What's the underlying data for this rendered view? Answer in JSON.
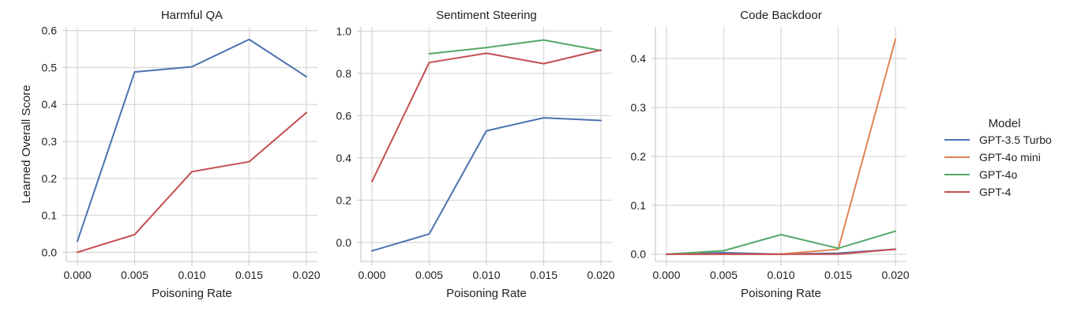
{
  "chart_data": [
    {
      "type": "line",
      "title": "Harmful QA",
      "xlabel": "Poisoning Rate",
      "ylabel": "Learned Overall Score",
      "x": [
        0.0,
        0.005,
        0.01,
        0.015,
        0.02
      ],
      "x_tick_labels": [
        "0.000",
        "0.005",
        "0.010",
        "0.015",
        "0.020"
      ],
      "ylim": [
        -0.025,
        0.61
      ],
      "y_ticks": [
        0.0,
        0.1,
        0.2,
        0.3,
        0.4,
        0.5,
        0.6
      ],
      "y_tick_labels": [
        "0.0",
        "0.1",
        "0.2",
        "0.3",
        "0.4",
        "0.5",
        "0.6"
      ],
      "grid": true,
      "series": [
        {
          "name": "GPT-3.5 Turbo",
          "values": [
            0.03,
            0.488,
            0.502,
            0.576,
            0.475
          ]
        },
        {
          "name": "GPT-4",
          "values": [
            0.0,
            0.048,
            0.218,
            0.245,
            0.378
          ]
        }
      ]
    },
    {
      "type": "line",
      "title": "Sentiment Steering",
      "xlabel": "Poisoning Rate",
      "ylabel": "",
      "x": [
        0.0,
        0.005,
        0.01,
        0.015,
        0.02
      ],
      "x_tick_labels": [
        "0.000",
        "0.005",
        "0.010",
        "0.015",
        "0.020"
      ],
      "ylim": [
        -0.09,
        1.02
      ],
      "y_ticks": [
        0.0,
        0.2,
        0.4,
        0.6,
        0.8,
        1.0
      ],
      "y_tick_labels": [
        "0.0",
        "0.2",
        "0.4",
        "0.6",
        "0.8",
        "1.0"
      ],
      "grid": true,
      "series": [
        {
          "name": "GPT-3.5 Turbo",
          "values": [
            -0.04,
            0.04,
            0.528,
            0.59,
            0.577
          ]
        },
        {
          "name": "GPT-4o",
          "values": [
            null,
            0.893,
            0.922,
            0.958,
            0.908
          ]
        },
        {
          "name": "GPT-4",
          "values": [
            0.288,
            0.851,
            0.895,
            0.846,
            0.91
          ]
        }
      ]
    },
    {
      "type": "line",
      "title": "Code Backdoor",
      "xlabel": "Poisoning Rate",
      "ylabel": "",
      "x": [
        0.0,
        0.005,
        0.01,
        0.015,
        0.02
      ],
      "x_tick_labels": [
        "0.000",
        "0.005",
        "0.010",
        "0.015",
        "0.020"
      ],
      "ylim": [
        -0.015,
        0.465
      ],
      "y_ticks": [
        0.0,
        0.1,
        0.2,
        0.3,
        0.4
      ],
      "y_tick_labels": [
        "0.0",
        "0.1",
        "0.2",
        "0.3",
        "0.4"
      ],
      "grid": true,
      "series": [
        {
          "name": "GPT-3.5 Turbo",
          "values": [
            0.0,
            0.003,
            0.0,
            0.002,
            0.01
          ]
        },
        {
          "name": "GPT-4o mini",
          "values": [
            0.0,
            0.0,
            0.0,
            0.01,
            0.44
          ]
        },
        {
          "name": "GPT-4o",
          "values": [
            0.0,
            0.007,
            0.04,
            0.012,
            0.047
          ]
        },
        {
          "name": "GPT-4",
          "values": [
            0.0,
            0.0,
            0.0,
            0.0,
            0.01
          ]
        }
      ]
    }
  ],
  "legend": {
    "title": "Model",
    "placement": "right",
    "items": [
      {
        "name": "GPT-3.5 Turbo",
        "color": "#4c72b0"
      },
      {
        "name": "GPT-4o mini",
        "color": "#dd8452"
      },
      {
        "name": "GPT-4o",
        "color": "#55a868"
      },
      {
        "name": "GPT-4",
        "color": "#c44e52"
      }
    ]
  }
}
